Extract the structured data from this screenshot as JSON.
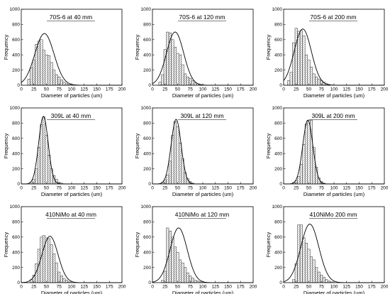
{
  "chart_data": [
    {
      "type": "bar",
      "title": "70S-6 at 40 mm",
      "xlabel": "Diameter of particles (um)",
      "ylabel": "Frequency",
      "xlim": [
        0,
        200
      ],
      "ylim": [
        0,
        1000
      ],
      "xticks": [
        0,
        25,
        50,
        75,
        100,
        125,
        150,
        175,
        200
      ],
      "yticks": [
        0,
        200,
        400,
        600,
        800,
        1000
      ],
      "bin_width": 5,
      "bins": [
        {
          "x": 15,
          "y": 80
        },
        {
          "x": 20,
          "y": 230
        },
        {
          "x": 25,
          "y": 330
        },
        {
          "x": 30,
          "y": 540
        },
        {
          "x": 35,
          "y": 580
        },
        {
          "x": 40,
          "y": 600
        },
        {
          "x": 45,
          "y": 460
        },
        {
          "x": 50,
          "y": 400
        },
        {
          "x": 55,
          "y": 390
        },
        {
          "x": 60,
          "y": 300
        },
        {
          "x": 65,
          "y": 200
        },
        {
          "x": 70,
          "y": 140
        },
        {
          "x": 75,
          "y": 110
        },
        {
          "x": 80,
          "y": 70
        },
        {
          "x": 85,
          "y": 40
        },
        {
          "x": 90,
          "y": 20
        },
        {
          "x": 95,
          "y": 10
        }
      ],
      "fit": {
        "type": "normal",
        "mean": 46,
        "sd": 19,
        "peak": 680
      }
    },
    {
      "type": "bar",
      "title": "70S-6 at 120 mm",
      "xlabel": "Diameter of particles (um)",
      "ylabel": "Frequency",
      "xlim": [
        0,
        200
      ],
      "ylim": [
        0,
        1000
      ],
      "xticks": [
        0,
        25,
        50,
        75,
        100,
        125,
        150,
        175,
        200
      ],
      "yticks": [
        0,
        200,
        400,
        600,
        800,
        1000
      ],
      "bin_width": 5,
      "bins": [
        {
          "x": 15,
          "y": 40
        },
        {
          "x": 20,
          "y": 140
        },
        {
          "x": 25,
          "y": 470
        },
        {
          "x": 30,
          "y": 700
        },
        {
          "x": 35,
          "y": 690
        },
        {
          "x": 40,
          "y": 600
        },
        {
          "x": 45,
          "y": 500
        },
        {
          "x": 50,
          "y": 420
        },
        {
          "x": 55,
          "y": 400
        },
        {
          "x": 60,
          "y": 270
        },
        {
          "x": 65,
          "y": 150
        },
        {
          "x": 70,
          "y": 110
        },
        {
          "x": 75,
          "y": 90
        },
        {
          "x": 80,
          "y": 60
        },
        {
          "x": 85,
          "y": 30
        },
        {
          "x": 90,
          "y": 20
        },
        {
          "x": 95,
          "y": 10
        }
      ],
      "fit": {
        "type": "normal",
        "mean": 45,
        "sd": 17,
        "peak": 700
      }
    },
    {
      "type": "bar",
      "title": "70S-6 at 200 mm",
      "xlabel": "Diameter of particles (um)",
      "ylabel": "Frequency",
      "xlim": [
        0,
        200
      ],
      "ylim": [
        0,
        1000
      ],
      "xticks": [
        0,
        25,
        50,
        75,
        100,
        125,
        150,
        175,
        200
      ],
      "yticks": [
        0,
        200,
        400,
        600,
        800,
        1000
      ],
      "bin_width": 5,
      "bins": [
        {
          "x": 10,
          "y": 60
        },
        {
          "x": 15,
          "y": 170
        },
        {
          "x": 20,
          "y": 560
        },
        {
          "x": 25,
          "y": 750
        },
        {
          "x": 30,
          "y": 710
        },
        {
          "x": 35,
          "y": 720
        },
        {
          "x": 40,
          "y": 650
        },
        {
          "x": 45,
          "y": 400
        },
        {
          "x": 50,
          "y": 330
        },
        {
          "x": 55,
          "y": 240
        },
        {
          "x": 60,
          "y": 150
        },
        {
          "x": 65,
          "y": 110
        },
        {
          "x": 70,
          "y": 80
        },
        {
          "x": 75,
          "y": 60
        },
        {
          "x": 80,
          "y": 40
        },
        {
          "x": 85,
          "y": 20
        },
        {
          "x": 90,
          "y": 10
        }
      ],
      "fit": {
        "type": "normal",
        "mean": 38,
        "sd": 17,
        "peak": 740
      }
    },
    {
      "type": "bar",
      "title": "309L at 40 mm",
      "xlabel": "Diameter of particles (um)",
      "ylabel": "Frequency",
      "xlim": [
        0,
        200
      ],
      "ylim": [
        0,
        1000
      ],
      "xticks": [
        0,
        25,
        50,
        75,
        100,
        125,
        150,
        175,
        200
      ],
      "yticks": [
        0,
        200,
        400,
        600,
        800,
        1000
      ],
      "bin_width": 5,
      "bins": [
        {
          "x": 20,
          "y": 20
        },
        {
          "x": 25,
          "y": 60
        },
        {
          "x": 30,
          "y": 200
        },
        {
          "x": 35,
          "y": 480
        },
        {
          "x": 40,
          "y": 780
        },
        {
          "x": 45,
          "y": 880
        },
        {
          "x": 50,
          "y": 640
        },
        {
          "x": 55,
          "y": 380
        },
        {
          "x": 60,
          "y": 200
        },
        {
          "x": 65,
          "y": 110
        },
        {
          "x": 70,
          "y": 60
        },
        {
          "x": 75,
          "y": 20
        },
        {
          "x": 80,
          "y": 10
        }
      ],
      "fit": {
        "type": "normal",
        "mean": 44,
        "sd": 9.5,
        "peak": 890
      }
    },
    {
      "type": "bar",
      "title": "309L at 120 mm",
      "xlabel": "Diameter of particles (um)",
      "ylabel": "Frequency",
      "xlim": [
        0,
        200
      ],
      "ylim": [
        0,
        1000
      ],
      "xticks": [
        0,
        25,
        50,
        75,
        100,
        125,
        150,
        175,
        200
      ],
      "yticks": [
        0,
        200,
        400,
        600,
        800,
        1000
      ],
      "bin_width": 5,
      "bins": [
        {
          "x": 20,
          "y": 20
        },
        {
          "x": 25,
          "y": 50
        },
        {
          "x": 30,
          "y": 120
        },
        {
          "x": 35,
          "y": 300
        },
        {
          "x": 40,
          "y": 640
        },
        {
          "x": 45,
          "y": 820
        },
        {
          "x": 50,
          "y": 750
        },
        {
          "x": 55,
          "y": 540
        },
        {
          "x": 60,
          "y": 330
        },
        {
          "x": 65,
          "y": 150
        },
        {
          "x": 70,
          "y": 70
        },
        {
          "x": 75,
          "y": 30
        },
        {
          "x": 80,
          "y": 10
        }
      ],
      "fit": {
        "type": "normal",
        "mean": 47,
        "sd": 10,
        "peak": 850
      }
    },
    {
      "type": "bar",
      "title": "309L at 200 mm",
      "xlabel": "Diameter of particles (um)",
      "ylabel": "Frequency",
      "xlim": [
        0,
        200
      ],
      "ylim": [
        0,
        1000
      ],
      "xticks": [
        0,
        25,
        50,
        75,
        100,
        125,
        150,
        175,
        200
      ],
      "yticks": [
        0,
        200,
        400,
        600,
        800,
        1000
      ],
      "bin_width": 5,
      "bins": [
        {
          "x": 20,
          "y": 20
        },
        {
          "x": 25,
          "y": 40
        },
        {
          "x": 30,
          "y": 100
        },
        {
          "x": 35,
          "y": 260
        },
        {
          "x": 40,
          "y": 520
        },
        {
          "x": 45,
          "y": 790
        },
        {
          "x": 50,
          "y": 840
        },
        {
          "x": 55,
          "y": 840
        },
        {
          "x": 60,
          "y": 480
        },
        {
          "x": 65,
          "y": 220
        },
        {
          "x": 70,
          "y": 80
        },
        {
          "x": 75,
          "y": 30
        },
        {
          "x": 80,
          "y": 10
        }
      ],
      "fit": {
        "type": "normal",
        "mean": 48,
        "sd": 10,
        "peak": 840
      }
    },
    {
      "type": "bar",
      "title": "410NiMo at 40 mm",
      "xlabel": "Diameter of particles (um)",
      "ylabel": "Frequency",
      "xlim": [
        0,
        200
      ],
      "ylim": [
        0,
        1000
      ],
      "xticks": [
        0,
        25,
        50,
        75,
        100,
        125,
        150,
        175,
        200
      ],
      "yticks": [
        0,
        200,
        400,
        600,
        800,
        1000
      ],
      "bin_width": 5,
      "bins": [
        {
          "x": 20,
          "y": 40
        },
        {
          "x": 25,
          "y": 100
        },
        {
          "x": 30,
          "y": 250
        },
        {
          "x": 35,
          "y": 440
        },
        {
          "x": 40,
          "y": 600
        },
        {
          "x": 45,
          "y": 620
        },
        {
          "x": 50,
          "y": 590
        },
        {
          "x": 55,
          "y": 580
        },
        {
          "x": 60,
          "y": 500
        },
        {
          "x": 65,
          "y": 380
        },
        {
          "x": 70,
          "y": 260
        },
        {
          "x": 75,
          "y": 140
        },
        {
          "x": 80,
          "y": 90
        },
        {
          "x": 85,
          "y": 50
        },
        {
          "x": 90,
          "y": 30
        },
        {
          "x": 95,
          "y": 10
        }
      ],
      "fit": {
        "type": "normal",
        "mean": 57,
        "sd": 16,
        "peak": 610
      }
    },
    {
      "type": "bar",
      "title": "410NiMo at 120 mm",
      "xlabel": "Diameter of particles (um)",
      "ylabel": "Frequency",
      "xlim": [
        0,
        200
      ],
      "ylim": [
        0,
        1000
      ],
      "xticks": [
        0,
        25,
        50,
        75,
        100,
        125,
        150,
        175,
        200
      ],
      "yticks": [
        0,
        200,
        400,
        600,
        800,
        1000
      ],
      "bin_width": 5,
      "bins": [
        {
          "x": 20,
          "y": 30
        },
        {
          "x": 25,
          "y": 150
        },
        {
          "x": 30,
          "y": 720
        },
        {
          "x": 35,
          "y": 680
        },
        {
          "x": 40,
          "y": 600
        },
        {
          "x": 45,
          "y": 470
        },
        {
          "x": 50,
          "y": 400
        },
        {
          "x": 55,
          "y": 300
        },
        {
          "x": 60,
          "y": 260
        },
        {
          "x": 65,
          "y": 200
        },
        {
          "x": 70,
          "y": 130
        },
        {
          "x": 75,
          "y": 90
        },
        {
          "x": 80,
          "y": 60
        },
        {
          "x": 85,
          "y": 30
        },
        {
          "x": 90,
          "y": 20
        },
        {
          "x": 95,
          "y": 10
        }
      ],
      "fit": {
        "type": "normal",
        "mean": 52,
        "sd": 17,
        "peak": 720
      }
    },
    {
      "type": "bar",
      "title": "410NiMo 200 mm",
      "xlabel": "Diameter of particles (um)",
      "ylabel": "Frequency",
      "xlim": [
        0,
        200
      ],
      "ylim": [
        0,
        1000
      ],
      "xticks": [
        0,
        25,
        50,
        75,
        100,
        125,
        150,
        175,
        200
      ],
      "yticks": [
        0,
        200,
        400,
        600,
        800,
        1000
      ],
      "bin_width": 5,
      "bins": [
        {
          "x": 20,
          "y": 40
        },
        {
          "x": 25,
          "y": 250
        },
        {
          "x": 30,
          "y": 760
        },
        {
          "x": 35,
          "y": 760
        },
        {
          "x": 40,
          "y": 590
        },
        {
          "x": 45,
          "y": 520
        },
        {
          "x": 50,
          "y": 440
        },
        {
          "x": 55,
          "y": 340
        },
        {
          "x": 60,
          "y": 300
        },
        {
          "x": 65,
          "y": 200
        },
        {
          "x": 70,
          "y": 140
        },
        {
          "x": 75,
          "y": 100
        },
        {
          "x": 80,
          "y": 70
        },
        {
          "x": 85,
          "y": 40
        },
        {
          "x": 90,
          "y": 20
        },
        {
          "x": 95,
          "y": 10
        }
      ],
      "fit": {
        "type": "normal",
        "mean": 52,
        "sd": 18,
        "peak": 770
      }
    }
  ]
}
